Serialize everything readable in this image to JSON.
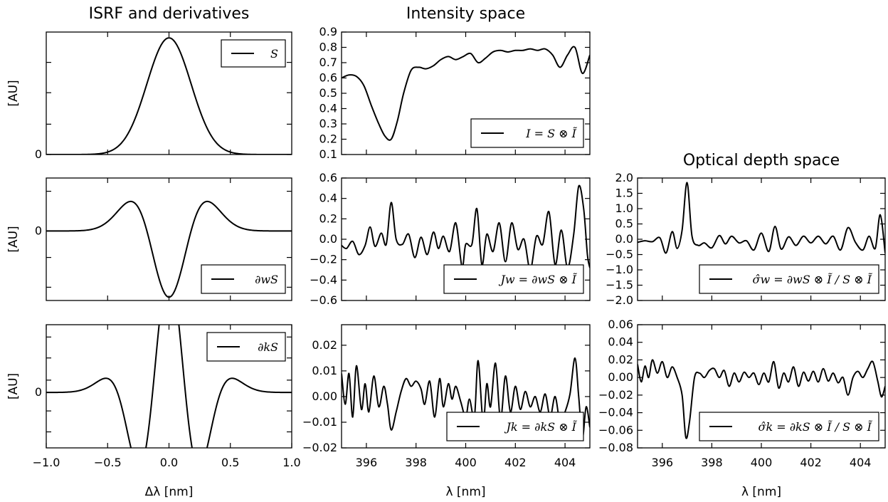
{
  "chart_data": [
    {
      "type": "line",
      "id": "isrf",
      "column_title": "ISRF and derivatives",
      "ylabel": "[AU]",
      "xlabel": "",
      "xlim": [
        -1.0,
        1.0
      ],
      "ylim": [
        0,
        1.05
      ],
      "x_ticks": [],
      "y_ticks": [
        {
          "value": 0,
          "label": "0"
        }
      ],
      "y_minor_ticks": [
        0.26,
        0.53,
        0.79
      ],
      "legend": "S",
      "legend_loc": "upper right",
      "series": [
        {
          "function": "gaussian",
          "sigma": 0.18,
          "amplitude": 1.0
        }
      ]
    },
    {
      "type": "line",
      "id": "dw",
      "ylabel": "[AU]",
      "xlabel": "",
      "xlim": [
        -1.0,
        1.0
      ],
      "ylim": [
        -1.05,
        0.8
      ],
      "x_ticks": [],
      "y_ticks": [
        {
          "value": 0,
          "label": "0"
        }
      ],
      "y_minor_ticks": [
        0.6,
        -0.4,
        -0.85
      ],
      "legend": "∂wS",
      "legend_loc": "lower right",
      "series": [
        {
          "function": "gaussian_d2",
          "sigma": 0.18
        }
      ]
    },
    {
      "type": "line",
      "id": "dk",
      "ylabel": "[AU]",
      "xlabel": "Δλ [nm]",
      "xlim": [
        -1.0,
        1.0
      ],
      "ylim": [
        -0.45,
        0.55
      ],
      "x_ticks": [
        {
          "value": -1.0,
          "label": "−1.0"
        },
        {
          "value": -0.5,
          "label": "−0.5"
        },
        {
          "value": 0.0,
          "label": "0.0"
        },
        {
          "value": 0.5,
          "label": "0.5"
        },
        {
          "value": 1.0,
          "label": "1.0"
        }
      ],
      "y_ticks": [
        {
          "value": 0,
          "label": "0"
        }
      ],
      "y_minor_ticks": [
        0.45,
        0.28,
        0.1,
        -0.15,
        -0.32
      ],
      "legend": "∂kS",
      "legend_loc": "upper right",
      "series": [
        {
          "function": "gaussian_d4",
          "sigma": 0.18
        }
      ]
    },
    {
      "type": "line",
      "id": "intensity",
      "column_title": "Intensity space",
      "ylabel": "",
      "xlabel": "",
      "xlim": [
        395,
        405
      ],
      "ylim": [
        0.1,
        0.9
      ],
      "x_ticks": [],
      "y_ticks": [
        {
          "value": 0.1,
          "label": "0.1"
        },
        {
          "value": 0.2,
          "label": "0.2"
        },
        {
          "value": 0.3,
          "label": "0.3"
        },
        {
          "value": 0.4,
          "label": "0.4"
        },
        {
          "value": 0.5,
          "label": "0.5"
        },
        {
          "value": 0.6,
          "label": "0.6"
        },
        {
          "value": 0.7,
          "label": "0.7"
        },
        {
          "value": 0.8,
          "label": "0.8"
        },
        {
          "value": 0.9,
          "label": "0.9"
        }
      ],
      "legend": "I = S ⊗ Ĩ",
      "legend_loc": "lower right",
      "series": [
        {
          "x": [
            395.0,
            395.3,
            395.6,
            395.9,
            396.2,
            396.5,
            396.75,
            397.0,
            397.25,
            397.5,
            397.8,
            398.1,
            398.4,
            398.7,
            399.0,
            399.3,
            399.6,
            399.9,
            400.2,
            400.5,
            400.8,
            401.1,
            401.4,
            401.7,
            402.0,
            402.3,
            402.6,
            402.9,
            403.2,
            403.5,
            403.8,
            404.1,
            404.4,
            404.7,
            405.0
          ],
          "y": [
            0.6,
            0.62,
            0.61,
            0.55,
            0.42,
            0.3,
            0.22,
            0.2,
            0.32,
            0.5,
            0.65,
            0.67,
            0.66,
            0.68,
            0.72,
            0.74,
            0.72,
            0.74,
            0.76,
            0.7,
            0.73,
            0.77,
            0.78,
            0.77,
            0.78,
            0.78,
            0.79,
            0.78,
            0.79,
            0.75,
            0.67,
            0.75,
            0.8,
            0.63,
            0.75
          ]
        }
      ]
    },
    {
      "type": "line",
      "id": "Jw",
      "ylabel": "",
      "xlabel": "",
      "xlim": [
        395,
        405
      ],
      "ylim": [
        -0.6,
        0.6
      ],
      "x_ticks": [],
      "y_ticks": [
        {
          "value": -0.6,
          "label": "−0.6"
        },
        {
          "value": -0.4,
          "label": "−0.4"
        },
        {
          "value": -0.2,
          "label": "−0.2"
        },
        {
          "value": 0.0,
          "label": "0.0"
        },
        {
          "value": 0.2,
          "label": "0.2"
        },
        {
          "value": 0.4,
          "label": "0.4"
        },
        {
          "value": 0.6,
          "label": "0.6"
        }
      ],
      "legend": "Jw = ∂wS ⊗ Ĩ",
      "legend_loc": "lower right",
      "series": [
        {
          "x": [
            395.0,
            395.2,
            395.45,
            395.7,
            395.95,
            396.15,
            396.35,
            396.6,
            396.8,
            397.0,
            397.2,
            397.45,
            397.7,
            397.95,
            398.2,
            398.45,
            398.7,
            398.9,
            399.1,
            399.35,
            399.6,
            399.85,
            400.0,
            400.25,
            400.45,
            400.65,
            400.85,
            401.1,
            401.35,
            401.6,
            401.85,
            402.1,
            402.35,
            402.6,
            402.85,
            403.1,
            403.35,
            403.6,
            403.85,
            404.1,
            404.35,
            404.55,
            404.75,
            404.9,
            405.0
          ],
          "y": [
            -0.06,
            -0.09,
            -0.02,
            -0.15,
            -0.06,
            0.12,
            -0.07,
            0.06,
            -0.05,
            0.36,
            0.0,
            -0.05,
            0.05,
            -0.18,
            0.02,
            -0.15,
            0.07,
            -0.09,
            0.03,
            -0.12,
            0.16,
            -0.27,
            -0.05,
            -0.05,
            0.3,
            -0.25,
            0.05,
            -0.12,
            0.16,
            -0.22,
            0.16,
            -0.1,
            0.0,
            -0.3,
            0.03,
            -0.05,
            0.27,
            -0.25,
            0.09,
            -0.28,
            0.05,
            0.52,
            0.3,
            -0.15,
            -0.28
          ]
        }
      ]
    },
    {
      "type": "line",
      "id": "Jk",
      "ylabel": "",
      "xlabel": "λ [nm]",
      "xlim": [
        395,
        405
      ],
      "ylim": [
        -0.02,
        0.028
      ],
      "x_ticks": [
        {
          "value": 396,
          "label": "396"
        },
        {
          "value": 398,
          "label": "398"
        },
        {
          "value": 400,
          "label": "400"
        },
        {
          "value": 402,
          "label": "402"
        },
        {
          "value": 404,
          "label": "404"
        }
      ],
      "y_ticks": [
        {
          "value": -0.02,
          "label": "−0.02"
        },
        {
          "value": -0.01,
          "label": "−0.01"
        },
        {
          "value": 0.0,
          "label": "0.00"
        },
        {
          "value": 0.01,
          "label": "0.01"
        },
        {
          "value": 0.02,
          "label": "0.02"
        }
      ],
      "legend": "Jk = ∂kS ⊗ Ĩ",
      "legend_loc": "lower right",
      "series": [
        {
          "x": [
            395.0,
            395.15,
            395.3,
            395.45,
            395.6,
            395.8,
            395.95,
            396.1,
            396.3,
            396.5,
            396.7,
            396.85,
            397.0,
            397.2,
            397.4,
            397.6,
            397.8,
            398.0,
            398.2,
            398.35,
            398.55,
            398.75,
            398.95,
            399.1,
            399.3,
            399.45,
            399.6,
            399.8,
            400.0,
            400.15,
            400.35,
            400.5,
            400.7,
            400.85,
            401.0,
            401.2,
            401.4,
            401.6,
            401.8,
            402.0,
            402.2,
            402.4,
            402.6,
            402.8,
            403.0,
            403.2,
            403.4,
            403.6,
            403.8,
            404.0,
            404.2,
            404.4,
            404.55,
            404.7,
            404.85,
            405.0
          ],
          "y": [
            0.009,
            -0.003,
            0.009,
            -0.008,
            0.012,
            -0.005,
            0.005,
            -0.006,
            0.008,
            -0.004,
            0.004,
            -0.003,
            -0.013,
            -0.006,
            0.002,
            0.007,
            0.004,
            0.006,
            0.003,
            -0.003,
            0.006,
            -0.008,
            0.007,
            -0.004,
            0.005,
            -0.001,
            0.004,
            -0.002,
            -0.008,
            -0.001,
            -0.008,
            0.014,
            -0.01,
            0.005,
            -0.004,
            0.013,
            -0.009,
            0.008,
            -0.006,
            0.004,
            -0.005,
            0.002,
            -0.004,
            0.0,
            -0.006,
            0.001,
            -0.008,
            0.0,
            -0.01,
            -0.006,
            0.001,
            0.015,
            0.0,
            -0.016,
            -0.004,
            -0.012
          ]
        }
      ]
    },
    {
      "type": "line",
      "id": "sigma_w",
      "column_title": "Optical depth space",
      "ylabel": "",
      "xlabel": "",
      "xlim": [
        395,
        405
      ],
      "ylim": [
        -2.0,
        2.0
      ],
      "x_ticks": [],
      "y_ticks": [
        {
          "value": -2.0,
          "label": "−2.0"
        },
        {
          "value": -1.5,
          "label": "−1.5"
        },
        {
          "value": -1.0,
          "label": "−1.0"
        },
        {
          "value": -0.5,
          "label": "−0.5"
        },
        {
          "value": 0.0,
          "label": "0.0"
        },
        {
          "value": 0.5,
          "label": "0.5"
        },
        {
          "value": 1.0,
          "label": "1.0"
        },
        {
          "value": 1.5,
          "label": "1.5"
        },
        {
          "value": 2.0,
          "label": "2.0"
        }
      ],
      "legend": "σ̂w = ∂wS ⊗ Ĩ / S ⊗ Ĩ",
      "legend_loc": "lower right",
      "series": [
        {
          "x": [
            395.0,
            395.3,
            395.6,
            395.9,
            396.15,
            396.4,
            396.6,
            396.8,
            397.0,
            397.2,
            397.45,
            397.7,
            398.0,
            398.3,
            398.55,
            398.8,
            399.1,
            399.4,
            399.7,
            400.0,
            400.3,
            400.55,
            400.8,
            401.1,
            401.4,
            401.7,
            402.0,
            402.3,
            402.6,
            402.9,
            403.2,
            403.5,
            403.8,
            404.1,
            404.35,
            404.6,
            404.8,
            405.0
          ],
          "y": [
            -0.1,
            -0.05,
            -0.08,
            0.05,
            -0.45,
            0.25,
            -0.3,
            0.3,
            1.85,
            0.1,
            -0.2,
            -0.12,
            -0.28,
            0.12,
            -0.15,
            0.1,
            -0.12,
            -0.05,
            -0.35,
            0.2,
            -0.4,
            0.42,
            -0.32,
            0.08,
            -0.2,
            0.1,
            -0.12,
            0.1,
            -0.15,
            0.1,
            -0.35,
            0.38,
            -0.1,
            -0.35,
            0.1,
            -0.3,
            0.8,
            -0.45
          ]
        }
      ]
    },
    {
      "type": "line",
      "id": "sigma_k",
      "ylabel": "",
      "xlabel": "λ [nm]",
      "xlim": [
        395,
        405
      ],
      "ylim": [
        -0.08,
        0.06
      ],
      "x_ticks": [
        {
          "value": 396,
          "label": "396"
        },
        {
          "value": 398,
          "label": "398"
        },
        {
          "value": 400,
          "label": "400"
        },
        {
          "value": 402,
          "label": "402"
        },
        {
          "value": 404,
          "label": "404"
        }
      ],
      "y_ticks": [
        {
          "value": -0.08,
          "label": "−0.08"
        },
        {
          "value": -0.06,
          "label": "−0.06"
        },
        {
          "value": -0.04,
          "label": "−0.04"
        },
        {
          "value": -0.02,
          "label": "−0.02"
        },
        {
          "value": 0.0,
          "label": "0.00"
        },
        {
          "value": 0.02,
          "label": "0.02"
        },
        {
          "value": 0.04,
          "label": "0.04"
        },
        {
          "value": 0.06,
          "label": "0.06"
        }
      ],
      "legend": "σ̂k = ∂kS ⊗ Ĩ / S ⊗ Ĩ",
      "legend_loc": "lower right",
      "series": [
        {
          "x": [
            395.0,
            395.15,
            395.3,
            395.45,
            395.6,
            395.8,
            396.0,
            396.2,
            396.4,
            396.6,
            396.8,
            396.95,
            397.1,
            397.3,
            397.5,
            397.7,
            397.9,
            398.1,
            398.3,
            398.5,
            398.7,
            398.9,
            399.1,
            399.3,
            399.5,
            399.7,
            399.9,
            400.1,
            400.3,
            400.5,
            400.7,
            400.9,
            401.1,
            401.3,
            401.5,
            401.7,
            401.9,
            402.1,
            402.3,
            402.5,
            402.7,
            402.9,
            403.1,
            403.3,
            403.5,
            403.7,
            403.9,
            404.1,
            404.3,
            404.5,
            404.7,
            404.85,
            405.0
          ],
          "y": [
            0.015,
            -0.005,
            0.013,
            0.0,
            0.02,
            0.005,
            0.018,
            0.0,
            0.012,
            0.0,
            -0.02,
            -0.068,
            -0.05,
            0.0,
            0.005,
            0.0,
            0.008,
            0.01,
            0.0,
            0.008,
            -0.01,
            0.005,
            -0.005,
            0.006,
            0.0,
            0.005,
            -0.008,
            0.005,
            -0.005,
            0.018,
            -0.012,
            0.005,
            -0.005,
            0.012,
            -0.01,
            0.006,
            -0.004,
            0.007,
            -0.005,
            0.01,
            -0.004,
            0.005,
            -0.006,
            0.0,
            -0.02,
            0.0,
            0.007,
            0.0,
            0.01,
            0.018,
            -0.004,
            -0.022,
            -0.01
          ]
        }
      ]
    }
  ]
}
